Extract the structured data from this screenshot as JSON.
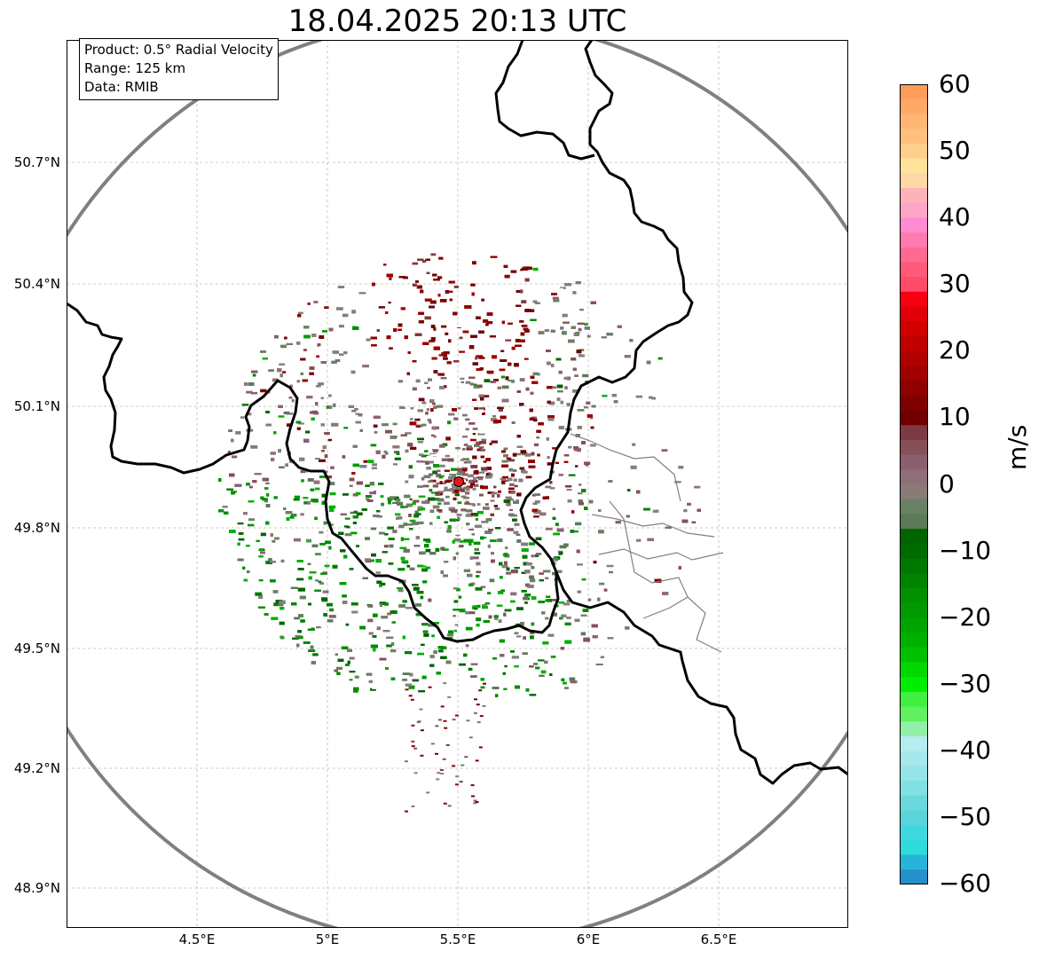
{
  "title": "18.04.2025 20:13 UTC",
  "info": {
    "product": "Product: 0.5° Radial Velocity",
    "range": "Range: 125 km",
    "data": "Data: RMIB"
  },
  "lat_labels": [
    "50.7°N",
    "50.4°N",
    "50.1°N",
    "49.8°N",
    "49.5°N",
    "49.2°N",
    "48.9°N"
  ],
  "lon_labels": [
    "4.5°E",
    "5°E",
    "5.5°E",
    "6°E",
    "6.5°E"
  ],
  "colorbar": {
    "label": "m/s",
    "ticks": [
      "60",
      "50",
      "40",
      "30",
      "20",
      "10",
      "0",
      "−10",
      "−20",
      "−30",
      "−40",
      "−50",
      "−60"
    ]
  },
  "colors": {
    "range_ring": "#808080",
    "border": "#000000",
    "radar_site": "#e31a1c",
    "inbound": "#007a00",
    "outbound": "#7a0000",
    "near_zero": "#808080"
  }
}
